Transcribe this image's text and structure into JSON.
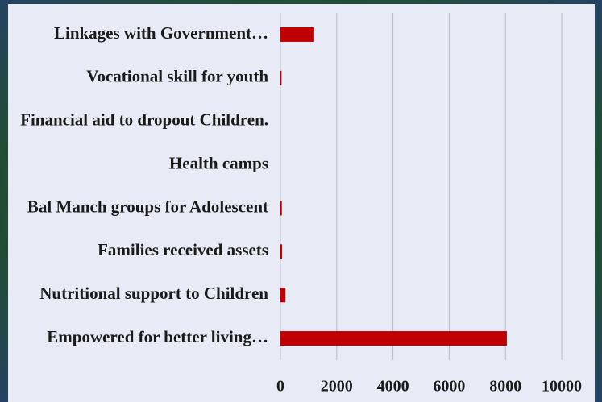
{
  "chart_data": {
    "type": "barh",
    "categories": [
      "Linkages with Government…",
      "Vocational skill for youth",
      "Financial aid to dropout Children.",
      "Health camps",
      "Bal Manch groups for Adolescent",
      "Families received assets",
      "Nutritional support to Children",
      "Empowered for better living…"
    ],
    "values": [
      1200,
      40,
      0,
      0,
      50,
      60,
      180,
      8050
    ],
    "color": "#c00000",
    "xlim": [
      0,
      10000
    ],
    "xticks": [
      0,
      2000,
      4000,
      6000,
      8000,
      10000
    ],
    "grid": true
  }
}
